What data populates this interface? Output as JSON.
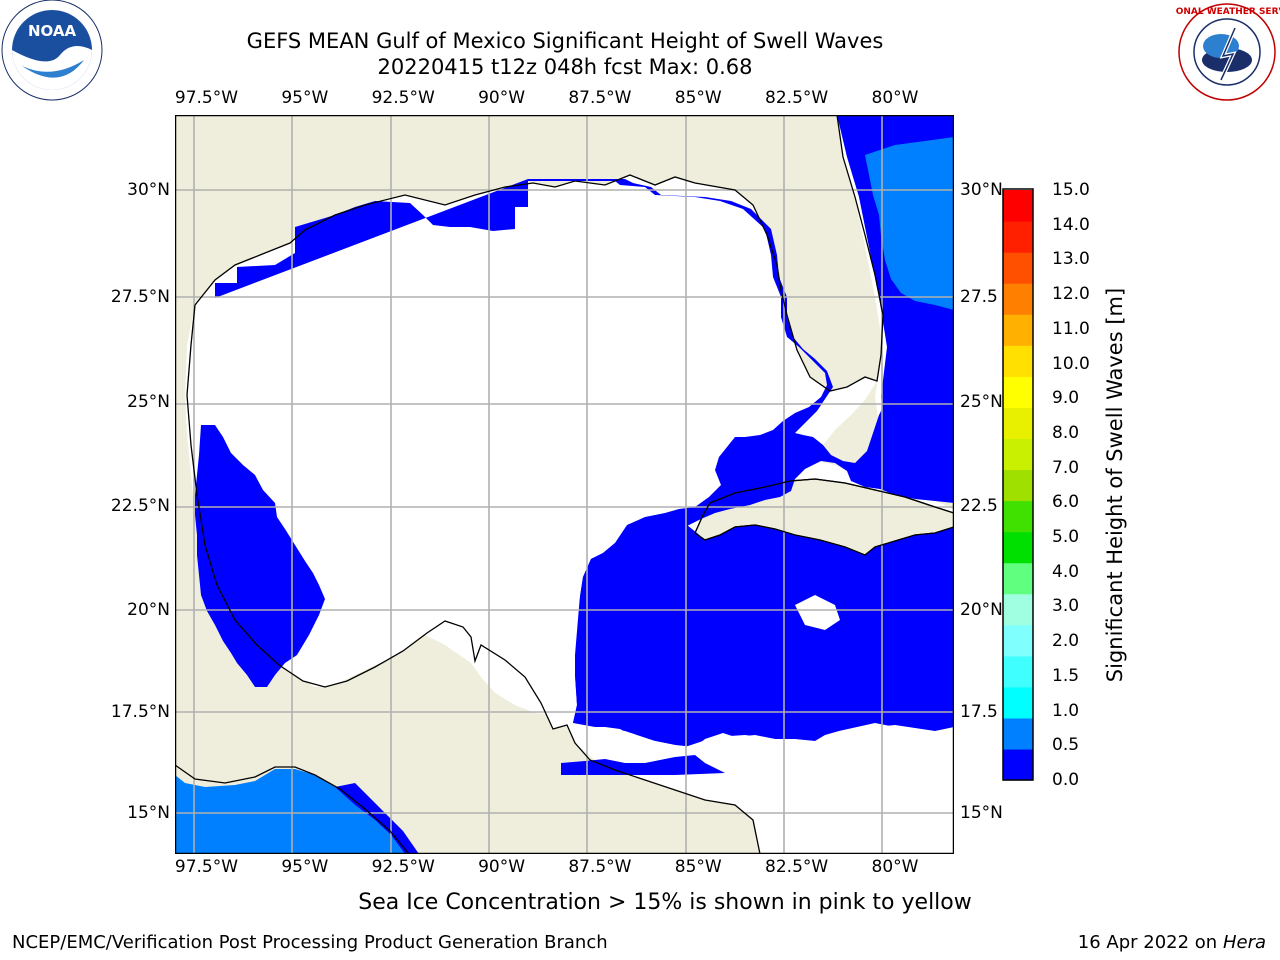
{
  "title_line1": "GEFS MEAN Gulf of Mexico Significant Height of Swell Waves",
  "title_line2": "20220415 t12z 048h fcst   Max: 0.68",
  "footer_note": "Sea Ice Concentration > 15% is shown in pink to yellow",
  "credit_left": "NCEP/EMC/Verification Post Processing Product Generation Branch",
  "credit_date": "16 Apr 2022 on ",
  "credit_host": "Hera",
  "map": {
    "lon_range": [
      -98.5,
      -78.5
    ],
    "lat_range": [
      14,
      32
    ],
    "lon_tick_labels": [
      "97.5°W",
      "95°W",
      "92.5°W",
      "90°W",
      "87.5°W",
      "85°W",
      "82.5°W",
      "80°W"
    ],
    "lat_tick_labels": [
      "15°N",
      "17.5°N",
      "20°N",
      "22.5°N",
      "25°N",
      "27.5°N",
      "30°N"
    ],
    "lat_tick_labels_right": [
      "15°N",
      "17.5",
      "20°N",
      "22.5",
      "25°N",
      "27.5",
      "30°N"
    ],
    "colors": {
      "land": "#efeedc",
      "no_data": "#ffffff",
      "swell_0_05": "#0000ff",
      "swell_05_10": "#0080ff",
      "grid": "#b0b0b0",
      "coast": "#000000"
    }
  },
  "colorbar": {
    "label": "Significant Height of Swell Waves [m]",
    "tick_labels": [
      "0.0",
      "0.5",
      "1.0",
      "1.5",
      "2.0",
      "3.0",
      "4.0",
      "5.0",
      "6.0",
      "7.0",
      "8.0",
      "9.0",
      "10.0",
      "11.0",
      "12.0",
      "13.0",
      "14.0",
      "15.0"
    ],
    "colors": [
      "#0000ff",
      "#0080ff",
      "#00ffff",
      "#40ffff",
      "#80ffff",
      "#a0ffe0",
      "#60ff80",
      "#00e000",
      "#40e000",
      "#a0e000",
      "#c8f000",
      "#e8f000",
      "#ffff00",
      "#ffe000",
      "#ffb000",
      "#ff8000",
      "#ff5000",
      "#ff2000",
      "#ff0000"
    ]
  },
  "logos": {
    "noaa_text": "NOAA",
    "nws_text": "NATIONAL WEATHER SERVICE"
  }
}
